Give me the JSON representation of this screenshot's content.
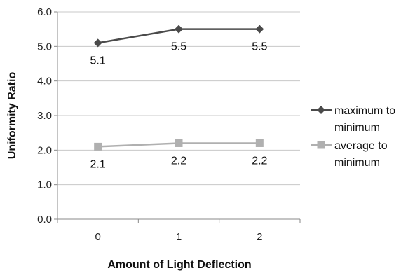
{
  "chart_data": {
    "type": "line",
    "x": [
      "0",
      "1",
      "2"
    ],
    "xlabel": "Amount of Light Deflection",
    "ylabel": "Uniformity Ratio",
    "ylim": [
      0,
      6
    ],
    "yticks": [
      "0.0",
      "1.0",
      "2.0",
      "3.0",
      "4.0",
      "5.0",
      "6.0"
    ],
    "grid": true,
    "legend": "right",
    "series": [
      {
        "name_lines": [
          "maximum to",
          "minimum"
        ],
        "values": [
          5.1,
          5.5,
          5.5
        ],
        "labels": [
          "5.1",
          "5.5",
          "5.5"
        ],
        "color": "#4a4a4a",
        "marker": "diamond"
      },
      {
        "name_lines": [
          "average to",
          "minimum"
        ],
        "values": [
          2.1,
          2.2,
          2.2
        ],
        "labels": [
          "2.1",
          "2.2",
          "2.2"
        ],
        "color": "#b0b0b0",
        "marker": "square"
      }
    ]
  }
}
